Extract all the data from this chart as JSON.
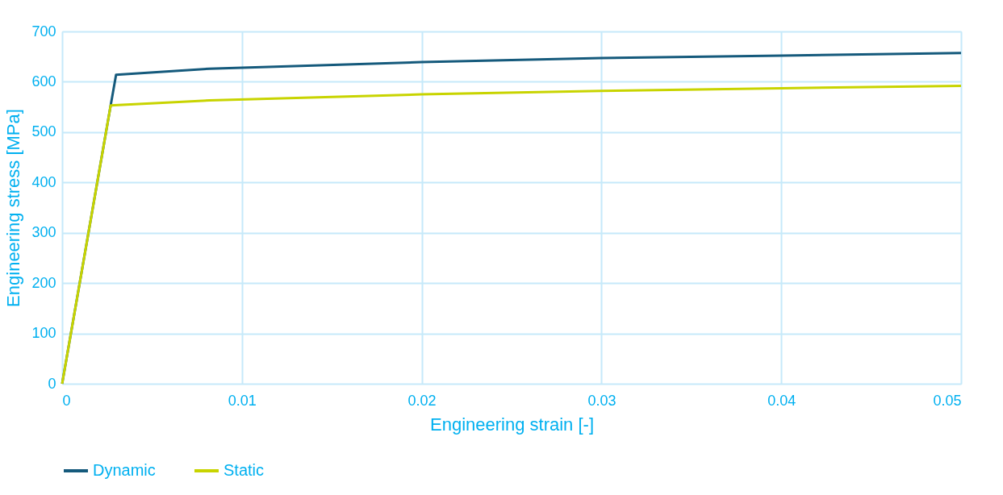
{
  "chart_data": {
    "type": "line",
    "xlabel": "Engineering strain [-]",
    "ylabel": "Engineering stress [MPa]",
    "xlim": [
      0,
      0.05
    ],
    "xticks": [
      0,
      0.01,
      0.02,
      0.03,
      0.04,
      0.05
    ],
    "ylim": [
      0,
      700
    ],
    "yticks": [
      0,
      100,
      200,
      300,
      400,
      500,
      600,
      700
    ],
    "grid": true,
    "legend": "bottom",
    "marker": "none",
    "line_style": "solid",
    "series": [
      {
        "name": "Dynamic",
        "color": "#155a7c",
        "x": [
          0,
          0.0027,
          0.003,
          0.0082,
          0.02,
          0.03,
          0.04,
          0.05
        ],
        "values": [
          0,
          553,
          614,
          626,
          639,
          647,
          652,
          657
        ]
      },
      {
        "name": "Static",
        "color": "#c8d400",
        "x": [
          0,
          0.0027,
          0.0082,
          0.02,
          0.03,
          0.04,
          0.05
        ],
        "values": [
          0,
          553,
          563,
          575,
          582,
          587,
          592
        ]
      }
    ]
  }
}
